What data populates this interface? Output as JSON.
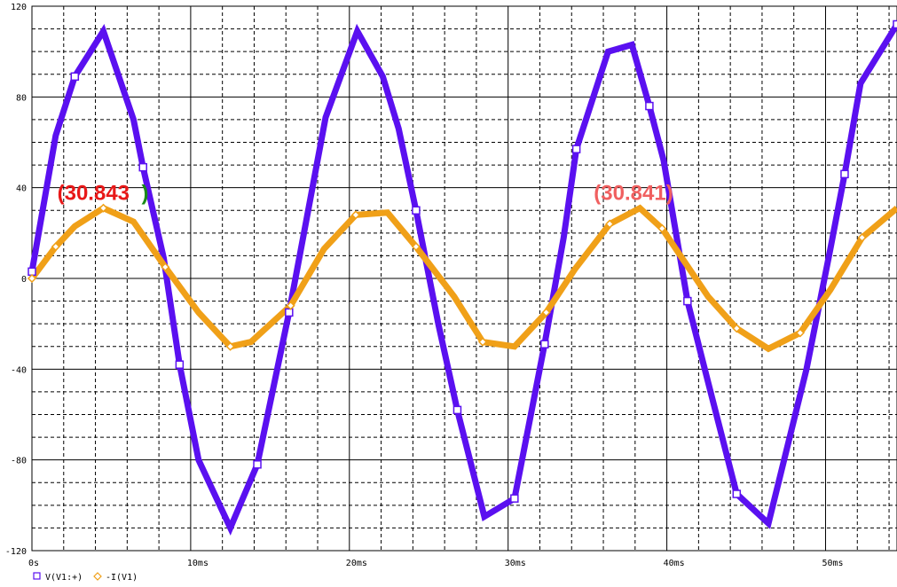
{
  "chart_data": {
    "type": "line",
    "x_unit": "ms",
    "xlim": [
      0,
      54.5
    ],
    "ylim": [
      -120,
      120
    ],
    "x_ticks": [
      {
        "value": 0,
        "label": "0s"
      },
      {
        "value": 10,
        "label": "10ms"
      },
      {
        "value": 20,
        "label": "20ms"
      },
      {
        "value": 30,
        "label": "30ms"
      },
      {
        "value": 40,
        "label": "40ms"
      },
      {
        "value": 50,
        "label": "50ms"
      }
    ],
    "y_ticks": [
      {
        "value": 120,
        "label": "120"
      },
      {
        "value": 80,
        "label": "80"
      },
      {
        "value": 40,
        "label": "40"
      },
      {
        "value": 0,
        "label": "0"
      },
      {
        "value": -40,
        "label": "-40"
      },
      {
        "value": -80,
        "label": "-80"
      },
      {
        "value": -120,
        "label": "-120"
      }
    ],
    "x_minor_step": 2,
    "y_minor_step": 10,
    "grid": true,
    "legend_position": "bottom-left",
    "series": [
      {
        "name": "V(V1:+)",
        "color": "#5a10f0",
        "marker": "square",
        "x": [
          0,
          1.5,
          2.7,
          4.5,
          6.4,
          7.0,
          8.3,
          9.3,
          10.5,
          12.5,
          13.1,
          14.2,
          16.2,
          18.5,
          20.5,
          22.1,
          23.1,
          24.2,
          25.6,
          26.8,
          28.5,
          30.4,
          32.3,
          33.5,
          34.3,
          36.3,
          37.8,
          38.9,
          39.8,
          41.3,
          42.5,
          44.4,
          46.4,
          48.8,
          50.3,
          51.2,
          52.2,
          54.5
        ],
        "y": [
          3,
          63,
          89,
          109,
          70,
          49,
          9,
          -38,
          -80,
          -110,
          -100,
          -82,
          -15,
          71,
          109,
          89,
          66,
          30,
          -20,
          -58,
          -105,
          -97,
          -29,
          18,
          57,
          100,
          103,
          76,
          52,
          -10,
          -43,
          -95,
          -108,
          -40,
          13,
          46,
          86,
          112
        ]
      },
      {
        "name": "-I(V1)",
        "color": "#f0a018",
        "marker": "diamond",
        "x": [
          0,
          1.5,
          2.7,
          4.5,
          6.4,
          8.4,
          10.5,
          12.5,
          13.8,
          16.3,
          18.4,
          20.4,
          22.4,
          24.2,
          26.6,
          28.4,
          30.4,
          32.4,
          34.2,
          36.4,
          38.3,
          39.7,
          42.6,
          44.4,
          46.4,
          48.4,
          50.3,
          52.3,
          54.5
        ],
        "y": [
          0,
          14,
          23,
          31,
          25,
          5,
          -15,
          -30,
          -28,
          -12,
          13,
          28,
          29,
          14,
          -8,
          -28,
          -30,
          -15,
          4,
          24,
          31,
          22,
          -8,
          -22,
          -31,
          -24,
          -5,
          18,
          31
        ]
      }
    ],
    "annotations": [
      {
        "text": "(30.843",
        "color": "#e81818",
        "x": 1.6,
        "y": 34.5
      },
      {
        "text": ")",
        "color": "#1a8a1a",
        "x": 6.9,
        "y": 34.5
      },
      {
        "text": "(30.841)",
        "color": "#f06060",
        "x": 35.4,
        "y": 34.5
      }
    ]
  }
}
